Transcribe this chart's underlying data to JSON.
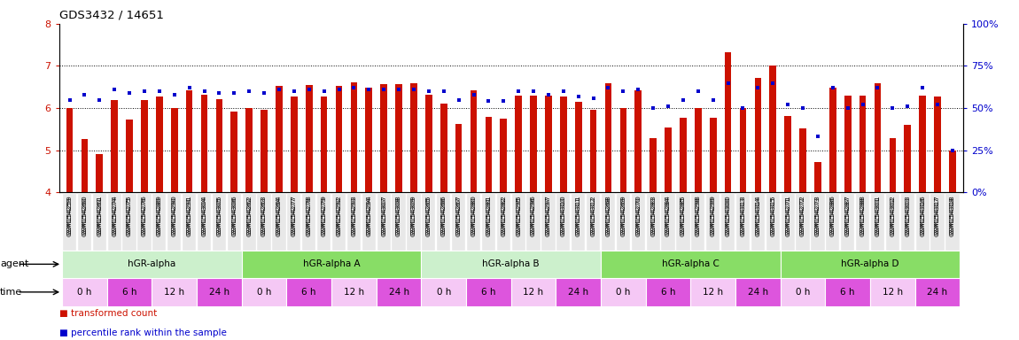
{
  "title": "GDS3432 / 14651",
  "samples": [
    "GSM154259",
    "GSM154260",
    "GSM154261",
    "GSM154274",
    "GSM154275",
    "GSM154276",
    "GSM154289",
    "GSM154290",
    "GSM154291",
    "GSM154304",
    "GSM154305",
    "GSM154306",
    "GSM154262",
    "GSM154263",
    "GSM154264",
    "GSM154277",
    "GSM154278",
    "GSM154279",
    "GSM154292",
    "GSM154293",
    "GSM154294",
    "GSM154307",
    "GSM154308",
    "GSM154309",
    "GSM154265",
    "GSM154266",
    "GSM154267",
    "GSM154280",
    "GSM154281",
    "GSM154282",
    "GSM154295",
    "GSM154296",
    "GSM154297",
    "GSM154310",
    "GSM154311",
    "GSM154312",
    "GSM154268",
    "GSM154269",
    "GSM154270",
    "GSM154283",
    "GSM154284",
    "GSM154285",
    "GSM154298",
    "GSM154299",
    "GSM154300",
    "GSM154313",
    "GSM154314",
    "GSM154315",
    "GSM154271",
    "GSM154272",
    "GSM154273",
    "GSM154286",
    "GSM154287",
    "GSM154288",
    "GSM154301",
    "GSM154302",
    "GSM154303",
    "GSM154316",
    "GSM154317",
    "GSM154318"
  ],
  "red_values": [
    6.0,
    5.27,
    4.92,
    6.2,
    5.72,
    6.2,
    6.28,
    6.0,
    6.42,
    6.32,
    6.22,
    5.92,
    6.0,
    5.95,
    6.52,
    6.28,
    6.55,
    6.28,
    6.52,
    6.62,
    6.48,
    6.56,
    6.56,
    6.6,
    6.32,
    6.1,
    5.62,
    6.42,
    5.8,
    5.75,
    6.3,
    6.3,
    6.3,
    6.28,
    6.15,
    5.95,
    6.6,
    6.0,
    6.42,
    5.28,
    5.55,
    5.78,
    6.0,
    5.78,
    7.32,
    6.0,
    6.72,
    7.0,
    5.82,
    5.52,
    4.72,
    6.48,
    6.3,
    6.3,
    6.58,
    5.28,
    5.6,
    6.3,
    6.28,
    5.0
  ],
  "blue_values": [
    55,
    58,
    55,
    61,
    59,
    60,
    60,
    58,
    62,
    60,
    59,
    59,
    60,
    59,
    61,
    60,
    61,
    60,
    61,
    62,
    61,
    61,
    61,
    61,
    60,
    60,
    55,
    58,
    54,
    54,
    60,
    60,
    58,
    60,
    57,
    56,
    62,
    60,
    61,
    50,
    51,
    55,
    60,
    55,
    65,
    50,
    62,
    65,
    52,
    50,
    33,
    62,
    50,
    52,
    62,
    50,
    51,
    62,
    52,
    25
  ],
  "ylim_left": [
    4,
    8
  ],
  "ylim_right": [
    0,
    100
  ],
  "yticks_left": [
    4,
    5,
    6,
    7,
    8
  ],
  "yticks_right": [
    0,
    25,
    50,
    75,
    100
  ],
  "dotted_lines": [
    5,
    6,
    7
  ],
  "baseline": 4.0,
  "agents": [
    {
      "label": "hGR-alpha",
      "start": 0,
      "end": 11
    },
    {
      "label": "hGR-alpha A",
      "start": 12,
      "end": 23
    },
    {
      "label": "hGR-alpha B",
      "start": 24,
      "end": 35
    },
    {
      "label": "hGR-alpha C",
      "start": 36,
      "end": 47
    },
    {
      "label": "hGR-alpha D",
      "start": 48,
      "end": 59
    }
  ],
  "agent_colors": [
    "#ccf0cc",
    "#88dd66",
    "#ccf0cc",
    "#88dd66",
    "#88dd66"
  ],
  "times": [
    {
      "label": "0 h",
      "start": 0,
      "end": 2
    },
    {
      "label": "6 h",
      "start": 3,
      "end": 5
    },
    {
      "label": "12 h",
      "start": 6,
      "end": 8
    },
    {
      "label": "24 h",
      "start": 9,
      "end": 11
    },
    {
      "label": "0 h",
      "start": 12,
      "end": 14
    },
    {
      "label": "6 h",
      "start": 15,
      "end": 17
    },
    {
      "label": "12 h",
      "start": 18,
      "end": 20
    },
    {
      "label": "24 h",
      "start": 21,
      "end": 23
    },
    {
      "label": "0 h",
      "start": 24,
      "end": 26
    },
    {
      "label": "6 h",
      "start": 27,
      "end": 29
    },
    {
      "label": "12 h",
      "start": 30,
      "end": 32
    },
    {
      "label": "24 h",
      "start": 33,
      "end": 35
    },
    {
      "label": "0 h",
      "start": 36,
      "end": 38
    },
    {
      "label": "6 h",
      "start": 39,
      "end": 41
    },
    {
      "label": "12 h",
      "start": 42,
      "end": 44
    },
    {
      "label": "24 h",
      "start": 45,
      "end": 47
    },
    {
      "label": "0 h",
      "start": 48,
      "end": 50
    },
    {
      "label": "6 h",
      "start": 51,
      "end": 53
    },
    {
      "label": "12 h",
      "start": 54,
      "end": 56
    },
    {
      "label": "24 h",
      "start": 57,
      "end": 59
    }
  ],
  "time_colors_cycle": [
    "#f5c8f5",
    "#dd55dd"
  ],
  "bar_color": "#cc1100",
  "dot_color": "#0000cc",
  "bg_color": "#ffffff",
  "axis_color_left": "#cc1100",
  "axis_color_right": "#0000cc",
  "bar_width": 0.45,
  "legend_bar_label": "transformed count",
  "legend_dot_label": "percentile rank within the sample"
}
